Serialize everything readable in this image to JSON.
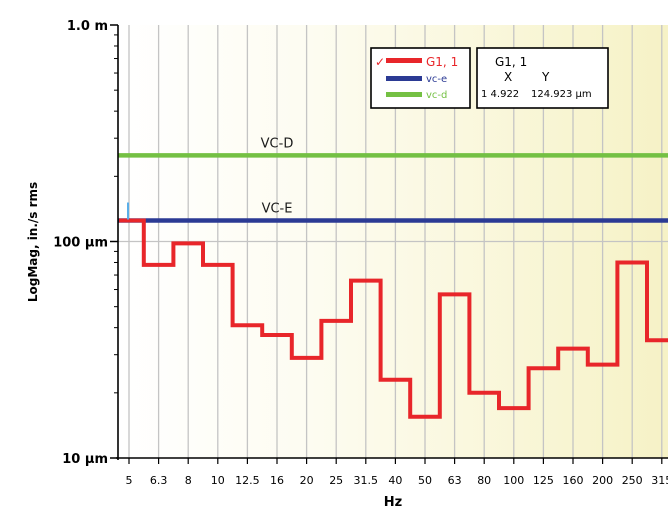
{
  "chart_data": {
    "type": "line",
    "xscale": "log",
    "yscale": "log",
    "xlabel": "Hz",
    "ylabel": "LogMag, in./s rms",
    "x_ticks": [
      5,
      6.3,
      8,
      10,
      12.5,
      16,
      20,
      25,
      31.5,
      40,
      50,
      63,
      80,
      100,
      125,
      160,
      200,
      250,
      315
    ],
    "y_ticks": [
      {
        "value": 1e-05,
        "label": "10 µm"
      },
      {
        "value": 0.0001,
        "label": "100 µm"
      },
      {
        "value": 0.001,
        "label": "1.0 m"
      }
    ],
    "ylim": [
      1e-05,
      0.001
    ],
    "grid": true,
    "series": [
      {
        "name": "G1, 1",
        "color": "#e8262a",
        "style": "step",
        "bands": [
          {
            "x": 5,
            "y": 0.000125
          },
          {
            "x": 6.3,
            "y": 7.8e-05
          },
          {
            "x": 8,
            "y": 9.8e-05
          },
          {
            "x": 10,
            "y": 7.8e-05
          },
          {
            "x": 12.5,
            "y": 4.1e-05
          },
          {
            "x": 16,
            "y": 3.7e-05
          },
          {
            "x": 20,
            "y": 2.9e-05
          },
          {
            "x": 25,
            "y": 4.3e-05
          },
          {
            "x": 31.5,
            "y": 6.6e-05
          },
          {
            "x": 40,
            "y": 2.3e-05
          },
          {
            "x": 50,
            "y": 1.55e-05
          },
          {
            "x": 63,
            "y": 5.7e-05
          },
          {
            "x": 80,
            "y": 2e-05
          },
          {
            "x": 100,
            "y": 1.7e-05
          },
          {
            "x": 125,
            "y": 2.6e-05
          },
          {
            "x": 160,
            "y": 3.2e-05
          },
          {
            "x": 200,
            "y": 2.7e-05
          },
          {
            "x": 250,
            "y": 8e-05
          },
          {
            "x": 315,
            "y": 3.5e-05
          }
        ]
      },
      {
        "name": "vc-e",
        "color": "#2b3a94",
        "value": 0.000125
      },
      {
        "name": "vc-d",
        "color": "#74c043",
        "value": 0.00025
      }
    ],
    "reference_labels": [
      {
        "series": "vc-d",
        "text": "VC-D"
      },
      {
        "series": "vc-e",
        "text": "VC-E"
      }
    ],
    "legend": {
      "position": "top-right",
      "checked_mark": "✓"
    },
    "cursor_readout": {
      "title": "G1, 1",
      "x_header": "X",
      "y_header": "Y",
      "x_value": "1 4.922",
      "y_value": "124.923 µm"
    }
  }
}
